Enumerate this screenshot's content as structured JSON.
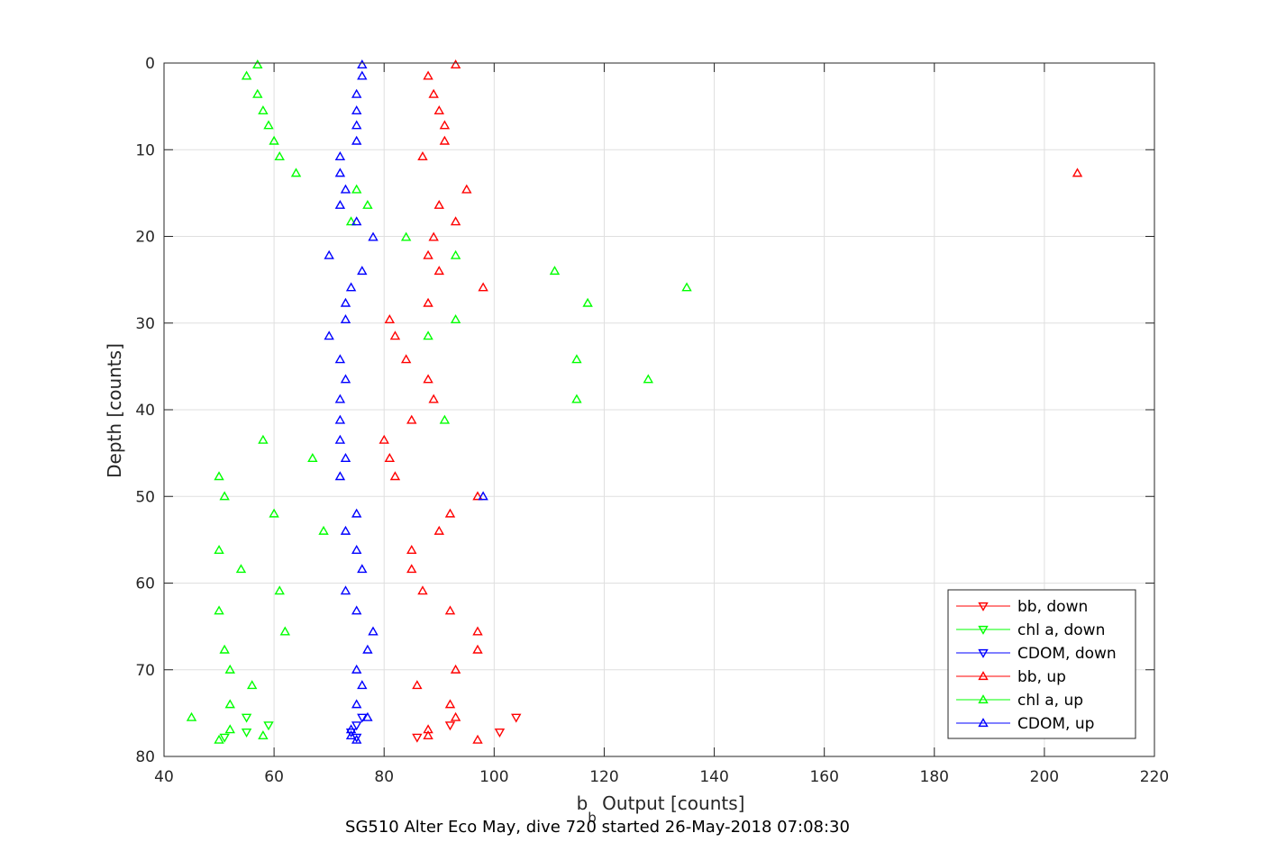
{
  "chart_data": {
    "type": "scatter",
    "xlabel_main": "b",
    "xlabel_sub": "b",
    "xlabel_rest": " Output [counts]",
    "ylabel": "Depth [counts]",
    "caption": "SG510 Alter Eco May, dive 720 started 26-May-2018 07:08:30",
    "xlim": [
      40,
      220
    ],
    "ylim": [
      0,
      80
    ],
    "y_reversed": true,
    "grid": true,
    "legend_position": "bottom-right",
    "xticks": [
      40,
      60,
      80,
      100,
      120,
      140,
      160,
      180,
      200,
      220
    ],
    "yticks": [
      0,
      10,
      20,
      30,
      40,
      50,
      60,
      70,
      80
    ],
    "series": [
      {
        "name": "bb, down",
        "color": "#ff0000",
        "marker": "down",
        "points": [
          [
            104,
            75.5
          ],
          [
            101,
            77.2
          ],
          [
            92,
            76.4
          ],
          [
            86,
            77.8
          ]
        ]
      },
      {
        "name": "chl a, down",
        "color": "#00ff00",
        "marker": "down",
        "points": [
          [
            55,
            75.5
          ],
          [
            59,
            76.4
          ],
          [
            55,
            77.2
          ],
          [
            51,
            77.8
          ]
        ]
      },
      {
        "name": "CDOM, down",
        "color": "#0000ff",
        "marker": "down",
        "points": [
          [
            76,
            75.5
          ],
          [
            75,
            76.4
          ],
          [
            74,
            77.2
          ],
          [
            75,
            77.8
          ]
        ]
      },
      {
        "name": "bb, up",
        "color": "#ff0000",
        "marker": "up",
        "points": [
          [
            93,
            0.2
          ],
          [
            88,
            1.5
          ],
          [
            89,
            3.6
          ],
          [
            90,
            5.5
          ],
          [
            91,
            7.2
          ],
          [
            91,
            9.0
          ],
          [
            87,
            10.8
          ],
          [
            206,
            12.7
          ],
          [
            95,
            14.6
          ],
          [
            90,
            16.4
          ],
          [
            93,
            18.3
          ],
          [
            89,
            20.1
          ],
          [
            88,
            22.2
          ],
          [
            90,
            24.0
          ],
          [
            98,
            25.9
          ],
          [
            88,
            27.7
          ],
          [
            81,
            29.6
          ],
          [
            82,
            31.5
          ],
          [
            84,
            34.2
          ],
          [
            88,
            36.5
          ],
          [
            89,
            38.8
          ],
          [
            85,
            41.2
          ],
          [
            80,
            43.5
          ],
          [
            81,
            45.6
          ],
          [
            82,
            47.7
          ],
          [
            97,
            50.0
          ],
          [
            92,
            52.0
          ],
          [
            90,
            54.0
          ],
          [
            85,
            56.2
          ],
          [
            85,
            58.4
          ],
          [
            87,
            60.9
          ],
          [
            92,
            63.2
          ],
          [
            97,
            65.6
          ],
          [
            97,
            67.7
          ],
          [
            93,
            70.0
          ],
          [
            86,
            71.8
          ],
          [
            92,
            74.0
          ],
          [
            93,
            75.5
          ],
          [
            88,
            76.9
          ],
          [
            88,
            77.6
          ],
          [
            97,
            78.1
          ]
        ]
      },
      {
        "name": "chl a, up",
        "color": "#00ff00",
        "marker": "up",
        "points": [
          [
            57,
            0.2
          ],
          [
            55,
            1.5
          ],
          [
            57,
            3.6
          ],
          [
            58,
            5.5
          ],
          [
            59,
            7.2
          ],
          [
            60,
            9.0
          ],
          [
            61,
            10.8
          ],
          [
            64,
            12.7
          ],
          [
            75,
            14.6
          ],
          [
            77,
            16.4
          ],
          [
            74,
            18.3
          ],
          [
            84,
            20.1
          ],
          [
            93,
            22.2
          ],
          [
            111,
            24.0
          ],
          [
            135,
            25.9
          ],
          [
            117,
            27.7
          ],
          [
            93,
            29.6
          ],
          [
            88,
            31.5
          ],
          [
            115,
            34.2
          ],
          [
            128,
            36.5
          ],
          [
            115,
            38.8
          ],
          [
            91,
            41.2
          ],
          [
            58,
            43.5
          ],
          [
            67,
            45.6
          ],
          [
            50,
            47.7
          ],
          [
            51,
            50.0
          ],
          [
            60,
            52.0
          ],
          [
            69,
            54.0
          ],
          [
            50,
            56.2
          ],
          [
            54,
            58.4
          ],
          [
            61,
            60.9
          ],
          [
            50,
            63.2
          ],
          [
            62,
            65.6
          ],
          [
            51,
            67.7
          ],
          [
            52,
            70.0
          ],
          [
            56,
            71.8
          ],
          [
            52,
            74.0
          ],
          [
            45,
            75.5
          ],
          [
            52,
            76.9
          ],
          [
            58,
            77.6
          ],
          [
            50,
            78.1
          ]
        ]
      },
      {
        "name": "CDOM, up",
        "color": "#0000ff",
        "marker": "up",
        "points": [
          [
            76,
            0.2
          ],
          [
            76,
            1.5
          ],
          [
            75,
            3.6
          ],
          [
            75,
            5.5
          ],
          [
            75,
            7.2
          ],
          [
            75,
            9.0
          ],
          [
            72,
            10.8
          ],
          [
            72,
            12.7
          ],
          [
            73,
            14.6
          ],
          [
            72,
            16.4
          ],
          [
            75,
            18.3
          ],
          [
            78,
            20.1
          ],
          [
            70,
            22.2
          ],
          [
            76,
            24.0
          ],
          [
            74,
            25.9
          ],
          [
            73,
            27.7
          ],
          [
            73,
            29.6
          ],
          [
            70,
            31.5
          ],
          [
            72,
            34.2
          ],
          [
            73,
            36.5
          ],
          [
            72,
            38.8
          ],
          [
            72,
            41.2
          ],
          [
            72,
            43.5
          ],
          [
            73,
            45.6
          ],
          [
            72,
            47.7
          ],
          [
            98,
            50.0
          ],
          [
            75,
            52.0
          ],
          [
            73,
            54.0
          ],
          [
            75,
            56.2
          ],
          [
            76,
            58.4
          ],
          [
            73,
            60.9
          ],
          [
            75,
            63.2
          ],
          [
            78,
            65.6
          ],
          [
            77,
            67.7
          ],
          [
            75,
            70.0
          ],
          [
            76,
            71.8
          ],
          [
            75,
            74.0
          ],
          [
            77,
            75.5
          ],
          [
            74,
            76.9
          ],
          [
            74,
            77.6
          ],
          [
            75,
            78.1
          ]
        ]
      }
    ]
  }
}
